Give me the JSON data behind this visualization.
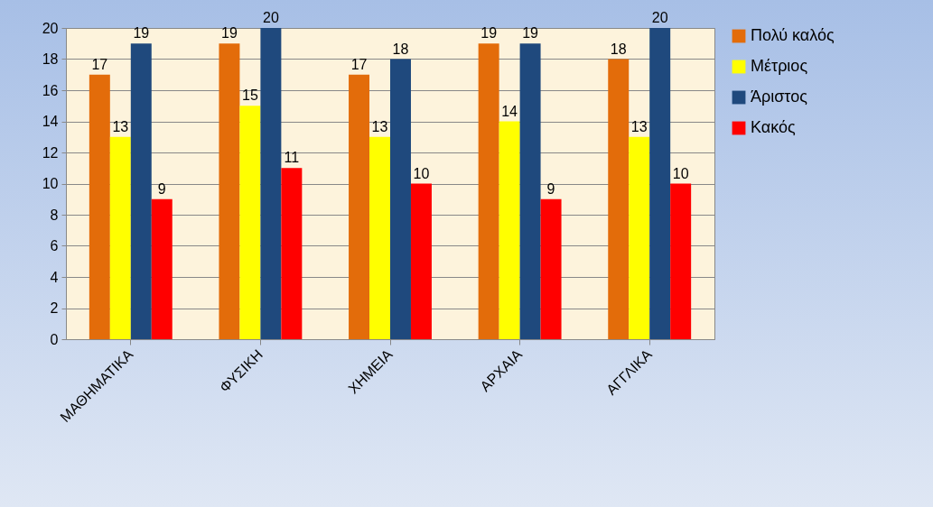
{
  "chart_data": {
    "type": "bar",
    "categories": [
      "ΜΑΘΗΜΑΤΙΚΑ",
      "ΦΥΣΙΚΗ",
      "ΧΗΜΕΙΑ",
      "ΑΡΧΑΙΑ",
      "ΑΓΓΛΙΚΑ"
    ],
    "series": [
      {
        "name": "Πολύ καλός",
        "color": "#e36c0a",
        "values": [
          17,
          19,
          17,
          19,
          18
        ]
      },
      {
        "name": "Μέτριος",
        "color": "#ffff00",
        "values": [
          13,
          15,
          13,
          14,
          13
        ]
      },
      {
        "name": "Άριστος",
        "color": "#1f497d",
        "values": [
          19,
          20,
          18,
          19,
          20
        ]
      },
      {
        "name": "Κακός",
        "color": "#ff0000",
        "values": [
          9,
          11,
          10,
          9,
          10
        ]
      }
    ],
    "ylim": [
      0,
      20
    ],
    "yticks": [
      0,
      2,
      4,
      6,
      8,
      10,
      12,
      14,
      16,
      18,
      20
    ],
    "grid": "y",
    "legend": "right",
    "data_labels": true
  }
}
